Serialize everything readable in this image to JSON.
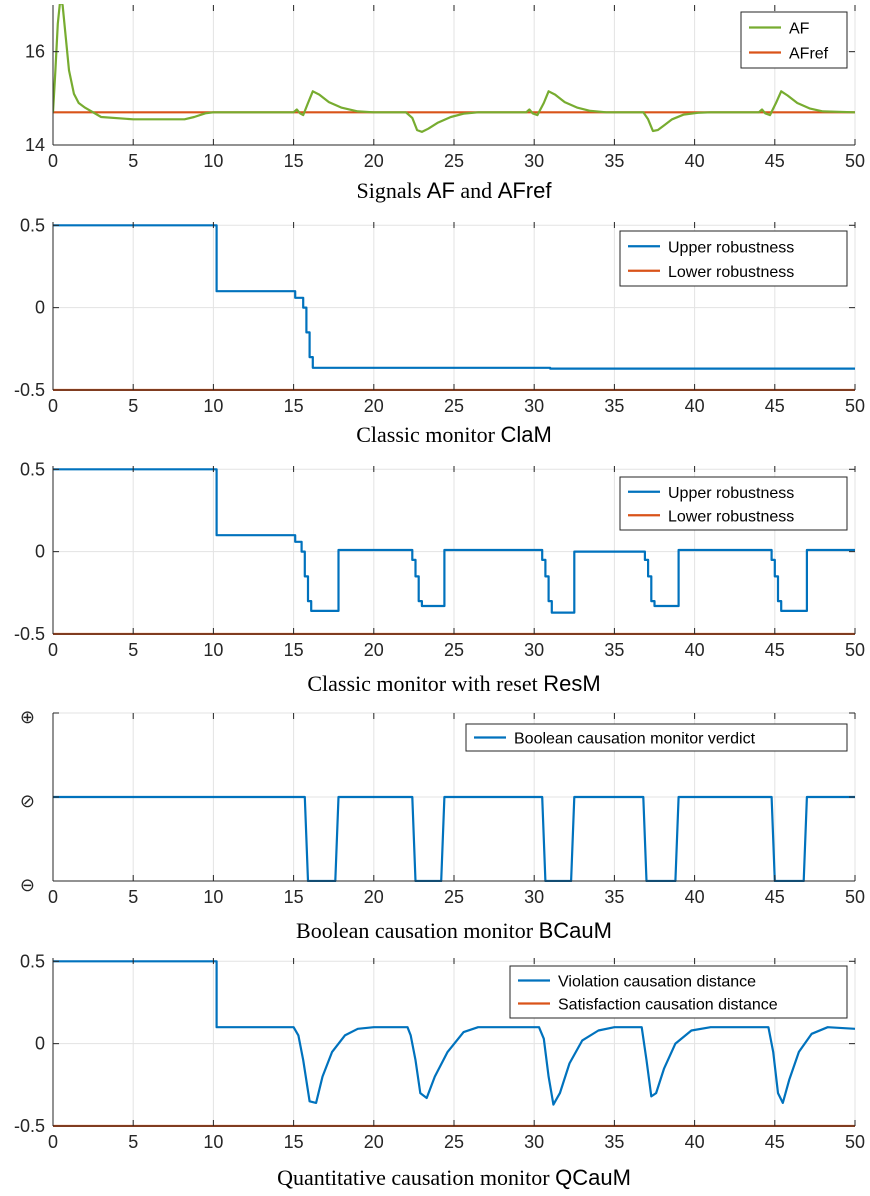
{
  "chart_data": [
    {
      "type": "line",
      "title": "Signals AF and AFref",
      "title_prefix": "Signals ",
      "title_symbol1": "AF",
      "title_mid": " and ",
      "title_symbol2": "AFref",
      "xlim": [
        0,
        50
      ],
      "ylim": [
        14,
        17
      ],
      "xticks": [
        0,
        5,
        10,
        15,
        20,
        25,
        30,
        35,
        40,
        45,
        50
      ],
      "yticks": [
        14,
        16
      ],
      "ytick_labels": [
        "14",
        "16"
      ],
      "legend": "top-right",
      "grid": true,
      "series": [
        {
          "name": "AF",
          "color": "#77ac30",
          "x": [
            0,
            0.15,
            0.3,
            0.45,
            0.6,
            0.8,
            1.0,
            1.3,
            1.6,
            2.0,
            3,
            5,
            7,
            8.2,
            8.8,
            9.5,
            10,
            15,
            15.2,
            15.4,
            15.6,
            15.9,
            16.2,
            16.6,
            17.2,
            18,
            19,
            20,
            22,
            22.4,
            22.7,
            23,
            23.4,
            24,
            24.8,
            25.6,
            26.5,
            29.5,
            29.7,
            29.9,
            30.2,
            30.6,
            30.9,
            31.3,
            31.9,
            32.7,
            33.5,
            34.5,
            36.8,
            37.1,
            37.4,
            37.7,
            38.1,
            38.6,
            39.3,
            40.2,
            41,
            44,
            44.2,
            44.4,
            44.7,
            45.1,
            45.4,
            45.8,
            46.4,
            47.2,
            48,
            50
          ],
          "y": [
            14.7,
            15.6,
            16.6,
            17.1,
            17.0,
            16.3,
            15.6,
            15.1,
            14.9,
            14.8,
            14.6,
            14.55,
            14.55,
            14.55,
            14.6,
            14.68,
            14.7,
            14.7,
            14.76,
            14.68,
            14.64,
            14.9,
            15.15,
            15.08,
            14.92,
            14.8,
            14.72,
            14.7,
            14.7,
            14.58,
            14.32,
            14.28,
            14.35,
            14.48,
            14.6,
            14.67,
            14.7,
            14.7,
            14.76,
            14.68,
            14.64,
            14.9,
            15.15,
            15.08,
            14.92,
            14.8,
            14.73,
            14.7,
            14.7,
            14.55,
            14.3,
            14.32,
            14.42,
            14.55,
            14.65,
            14.69,
            14.7,
            14.7,
            14.76,
            14.68,
            14.64,
            14.92,
            15.15,
            15.06,
            14.9,
            14.78,
            14.72,
            14.7
          ]
        },
        {
          "name": "AFref",
          "color": "#d95319",
          "x": [
            0,
            50
          ],
          "y": [
            14.7,
            14.7
          ]
        }
      ]
    },
    {
      "type": "line",
      "title": "Classic monitor ClaM",
      "title_prefix": "Classic monitor ",
      "title_symbol1": "ClaM",
      "xlim": [
        0,
        50
      ],
      "ylim": [
        -0.5,
        0.52
      ],
      "xticks": [
        0,
        5,
        10,
        15,
        20,
        25,
        30,
        35,
        40,
        45,
        50
      ],
      "yticks": [
        -0.5,
        0,
        0.5
      ],
      "ytick_labels": [
        "-0.5",
        "0",
        "0.5"
      ],
      "legend": "top-right",
      "grid": true,
      "series": [
        {
          "name": "Upper robustness",
          "color": "#0072bd",
          "x": [
            0,
            10.2,
            10.2,
            15.1,
            15.1,
            15.6,
            15.6,
            15.8,
            15.8,
            16.0,
            16.0,
            16.2,
            16.2,
            31,
            31,
            50
          ],
          "y": [
            0.5,
            0.5,
            0.1,
            0.1,
            0.06,
            0.06,
            0.0,
            0.0,
            -0.15,
            -0.15,
            -0.3,
            -0.3,
            -0.365,
            -0.365,
            -0.37,
            -0.37
          ]
        },
        {
          "name": "Lower robustness",
          "color": "#d95319",
          "x": [
            0,
            50
          ],
          "y": [
            -0.5,
            -0.5
          ]
        }
      ]
    },
    {
      "type": "line",
      "title": "Classic monitor with reset ResM",
      "title_prefix": "Classic monitor with reset ",
      "title_symbol1": "ResM",
      "xlim": [
        0,
        50
      ],
      "ylim": [
        -0.5,
        0.52
      ],
      "xticks": [
        0,
        5,
        10,
        15,
        20,
        25,
        30,
        35,
        40,
        45,
        50
      ],
      "yticks": [
        -0.5,
        0,
        0.5
      ],
      "ytick_labels": [
        "-0.5",
        "0",
        "0.5"
      ],
      "legend": "top-right",
      "grid": true,
      "series": [
        {
          "name": "Upper robustness",
          "color": "#0072bd",
          "x": [
            0,
            10.2,
            10.2,
            15.1,
            15.1,
            15.5,
            15.5,
            15.7,
            15.7,
            15.9,
            15.9,
            16.1,
            16.1,
            17.8,
            17.8,
            22.4,
            22.4,
            22.6,
            22.6,
            22.8,
            22.8,
            23.0,
            23.0,
            24.4,
            24.4,
            30.5,
            30.5,
            30.7,
            30.7,
            30.9,
            30.9,
            31.1,
            31.1,
            32.5,
            32.5,
            36.9,
            36.9,
            37.1,
            37.1,
            37.3,
            37.3,
            37.5,
            37.5,
            39.0,
            39.0,
            44.8,
            44.8,
            45.0,
            45.0,
            45.2,
            45.2,
            45.4,
            45.4,
            47.0,
            47.0,
            50
          ],
          "y": [
            0.5,
            0.5,
            0.1,
            0.1,
            0.06,
            0.06,
            0.0,
            0.0,
            -0.15,
            -0.15,
            -0.3,
            -0.3,
            -0.36,
            -0.36,
            0.01,
            0.01,
            -0.05,
            -0.05,
            -0.15,
            -0.15,
            -0.3,
            -0.3,
            -0.33,
            -0.33,
            0.01,
            0.01,
            -0.05,
            -0.05,
            -0.15,
            -0.15,
            -0.3,
            -0.3,
            -0.37,
            -0.37,
            0.0,
            0.0,
            -0.05,
            -0.05,
            -0.15,
            -0.15,
            -0.3,
            -0.3,
            -0.33,
            -0.33,
            0.01,
            0.01,
            -0.05,
            -0.05,
            -0.15,
            -0.15,
            -0.3,
            -0.3,
            -0.36,
            -0.36,
            0.01,
            0.01
          ]
        },
        {
          "name": "Lower robustness",
          "color": "#d95319",
          "x": [
            0,
            50
          ],
          "y": [
            -0.5,
            -0.5
          ]
        }
      ]
    },
    {
      "type": "line",
      "title": "Boolean causation monitor BCauM",
      "title_prefix": "Boolean causation monitor ",
      "title_symbol1": "BCauM",
      "xlim": [
        0,
        50
      ],
      "ylim": [
        -1,
        1
      ],
      "xticks": [
        0,
        5,
        10,
        15,
        20,
        25,
        30,
        35,
        40,
        45,
        50
      ],
      "yticks": [
        -1,
        0,
        1
      ],
      "ytick_labels": [
        "⊖",
        "⊘",
        "⊕"
      ],
      "legend": "top-right",
      "grid": true,
      "series": [
        {
          "name": "Boolean causation monitor verdict",
          "color": "#0072bd",
          "x": [
            0,
            15.7,
            15.9,
            17.6,
            17.8,
            22.4,
            22.6,
            24.2,
            24.4,
            30.5,
            30.7,
            32.3,
            32.5,
            36.8,
            37.0,
            38.8,
            39.0,
            44.8,
            45.0,
            46.8,
            47.0,
            50
          ],
          "y": [
            0,
            0,
            -1,
            -1,
            0,
            0,
            -1,
            -1,
            0,
            0,
            -1,
            -1,
            0,
            0,
            -1,
            -1,
            0,
            0,
            -1,
            -1,
            0,
            0
          ]
        }
      ]
    },
    {
      "type": "line",
      "title": "Quantitative causation monitor QCauM",
      "title_prefix": "Quantitative causation monitor ",
      "title_symbol1": "QCauM",
      "xlim": [
        0,
        50
      ],
      "ylim": [
        -0.5,
        0.52
      ],
      "xticks": [
        0,
        5,
        10,
        15,
        20,
        25,
        30,
        35,
        40,
        45,
        50
      ],
      "yticks": [
        -0.5,
        0,
        0.5
      ],
      "ytick_labels": [
        "-0.5",
        "0",
        "0.5"
      ],
      "legend": "top-right",
      "grid": true,
      "series": [
        {
          "name": "Violation causation distance",
          "color": "#0072bd",
          "x": [
            0,
            10.2,
            10.2,
            15.0,
            15.3,
            15.6,
            16.0,
            16.4,
            16.8,
            17.4,
            18.2,
            19.0,
            20,
            22.1,
            22.3,
            22.6,
            22.9,
            23.3,
            23.8,
            24.6,
            25.6,
            26.5,
            30.3,
            30.6,
            30.9,
            31.2,
            31.6,
            32.2,
            33.0,
            34.0,
            35.0,
            36.7,
            37.0,
            37.3,
            37.6,
            38.1,
            38.8,
            39.8,
            41,
            44.6,
            44.9,
            45.2,
            45.5,
            45.9,
            46.5,
            47.3,
            48.3,
            50
          ],
          "y": [
            0.5,
            0.5,
            0.1,
            0.1,
            0.05,
            -0.1,
            -0.35,
            -0.36,
            -0.2,
            -0.05,
            0.05,
            0.09,
            0.1,
            0.1,
            0.05,
            -0.1,
            -0.3,
            -0.33,
            -0.2,
            -0.05,
            0.07,
            0.1,
            0.1,
            0.03,
            -0.2,
            -0.37,
            -0.3,
            -0.12,
            0.02,
            0.08,
            0.1,
            0.1,
            -0.1,
            -0.32,
            -0.3,
            -0.15,
            0.0,
            0.08,
            0.1,
            0.1,
            -0.05,
            -0.3,
            -0.36,
            -0.22,
            -0.05,
            0.06,
            0.1,
            0.09
          ]
        },
        {
          "name": "Satisfaction causation distance",
          "color": "#d95319",
          "x": [
            0,
            50
          ],
          "y": [
            -0.5,
            -0.5
          ]
        }
      ]
    }
  ]
}
